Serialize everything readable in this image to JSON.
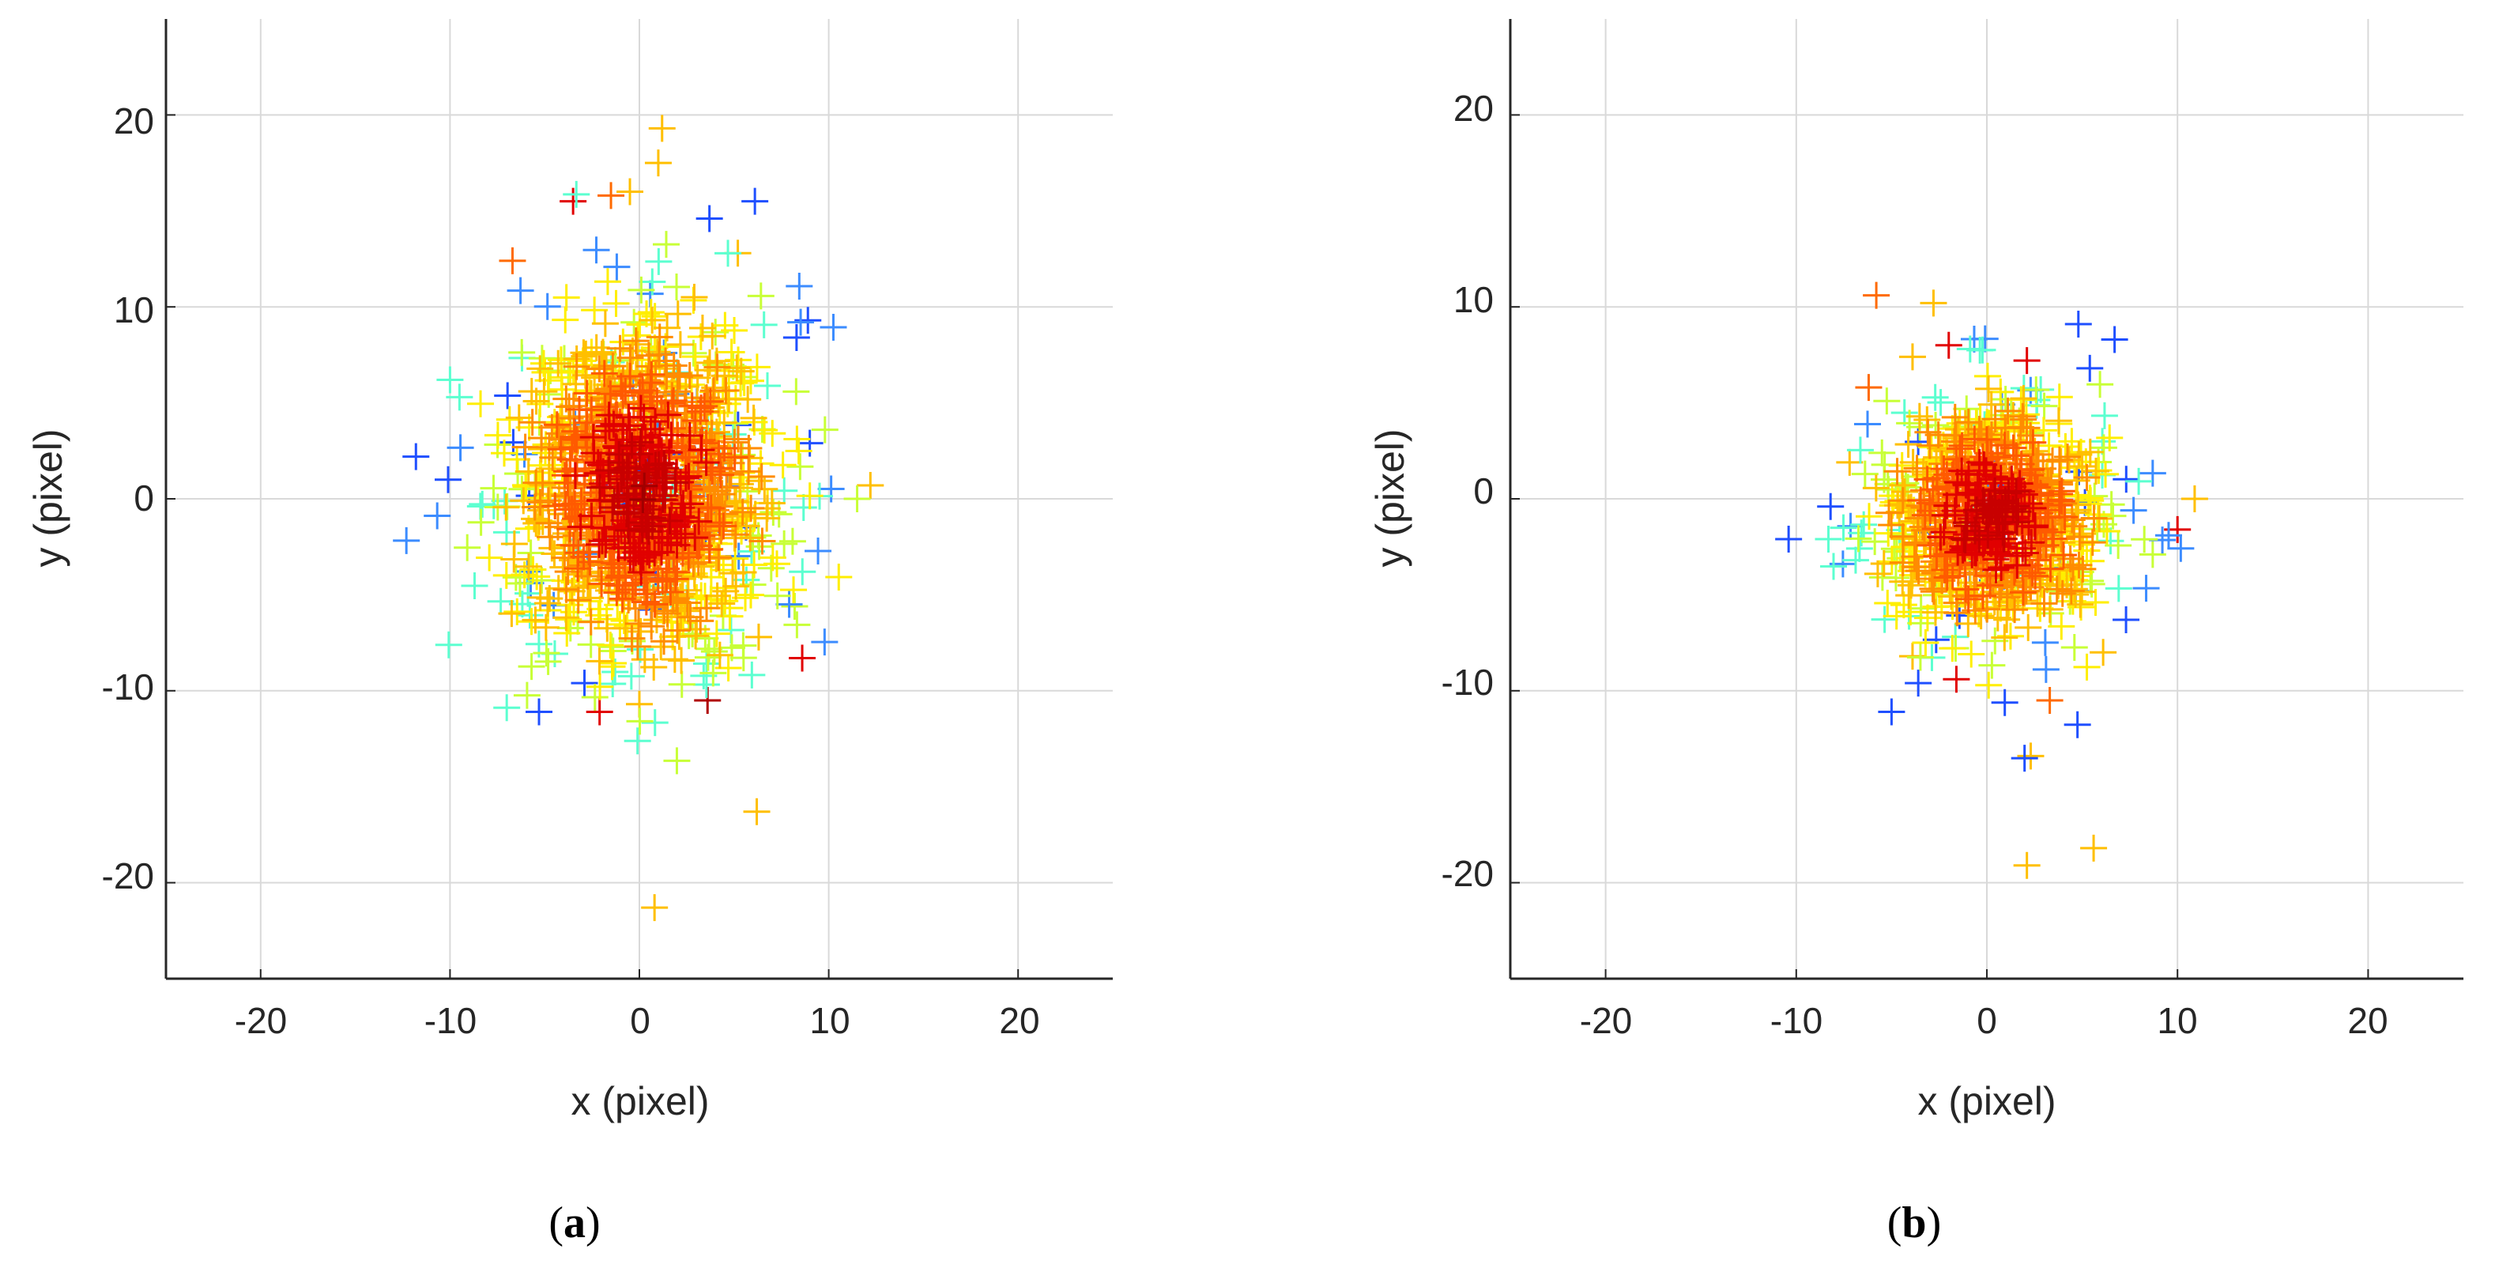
{
  "chart_data": [
    {
      "type": "scatter",
      "panel_label": "a",
      "xlabel": "x (pixel)",
      "ylabel": "y (pixel)",
      "xlim": [
        -25,
        25
      ],
      "ylim": [
        -25,
        25
      ],
      "xticks": [
        -20,
        -10,
        0,
        10,
        20
      ],
      "yticks": [
        -20,
        -10,
        0,
        10,
        20
      ],
      "xtick_labels": [
        "-20",
        "-10",
        "0",
        "10",
        "20"
      ],
      "ytick_labels": [
        "-20",
        "-10",
        "0",
        "10",
        "20"
      ],
      "grid": true,
      "marker": "+",
      "colormap": "jet",
      "cluster": {
        "center_x": 0,
        "center_y": 0.5,
        "spread_x": 3.4,
        "spread_y": 4.4,
        "count": 1400
      },
      "outliers": [
        {
          "x": -11.8,
          "y": 2.2,
          "color": "#1f4fff"
        },
        {
          "x": 12.2,
          "y": 0.7,
          "color": "#ffbf00"
        },
        {
          "x": 11.5,
          "y": 0.0,
          "color": "#c8ff37"
        },
        {
          "x": 9.8,
          "y": 3.6,
          "color": "#c8ff37"
        },
        {
          "x": 9.0,
          "y": 2.9,
          "color": "#1f4fff"
        },
        {
          "x": 8.9,
          "y": 9.3,
          "color": "#1f4fff"
        },
        {
          "x": 8.3,
          "y": 8.4,
          "color": "#1f4fff"
        },
        {
          "x": 8.6,
          "y": -8.3,
          "color": "#e10000"
        },
        {
          "x": 6.1,
          "y": 15.5,
          "color": "#1f4fff"
        },
        {
          "x": 5.2,
          "y": 12.8,
          "color": "#ffbf00"
        },
        {
          "x": 3.7,
          "y": 14.6,
          "color": "#1f4fff"
        },
        {
          "x": 1.2,
          "y": 19.3,
          "color": "#ffbf00"
        },
        {
          "x": 1.0,
          "y": 17.5,
          "color": "#ffbf00"
        },
        {
          "x": -0.5,
          "y": 16.0,
          "color": "#ffbf00"
        },
        {
          "x": -1.5,
          "y": 15.8,
          "color": "#ff6a00"
        },
        {
          "x": -3.5,
          "y": 15.5,
          "color": "#e10000"
        },
        {
          "x": -6.7,
          "y": 12.4,
          "color": "#ff6a00"
        },
        {
          "x": -10.0,
          "y": 6.2,
          "color": "#5cffd0"
        },
        {
          "x": -9.5,
          "y": 5.3,
          "color": "#5cffd0"
        },
        {
          "x": -10.1,
          "y": 1.0,
          "color": "#1f4fff"
        },
        {
          "x": 6.2,
          "y": -16.3,
          "color": "#ffbf00"
        },
        {
          "x": 0.8,
          "y": -21.3,
          "color": "#ffbf00"
        },
        {
          "x": -5.3,
          "y": -11.1,
          "color": "#1f4fff"
        },
        {
          "x": -2.1,
          "y": -11.1,
          "color": "#e10000"
        },
        {
          "x": 3.6,
          "y": -10.5,
          "color": "#b00000"
        },
        {
          "x": 0.0,
          "y": -10.7,
          "color": "#ffbf00"
        },
        {
          "x": -2.9,
          "y": -9.6,
          "color": "#1f4fff"
        },
        {
          "x": 6.3,
          "y": -7.2,
          "color": "#ffbf00"
        },
        {
          "x": 8.2,
          "y": -5.6,
          "color": "#c8ff37"
        }
      ]
    },
    {
      "type": "scatter",
      "panel_label": "b",
      "xlabel": "x (pixel)",
      "ylabel": "y (pixel)",
      "xlim": [
        -25,
        25
      ],
      "ylim": [
        -25,
        25
      ],
      "xticks": [
        -20,
        -10,
        0,
        10,
        20
      ],
      "yticks": [
        -20,
        -10,
        0,
        10,
        20
      ],
      "xtick_labels": [
        "-20",
        "-10",
        "0",
        "10",
        "20"
      ],
      "ytick_labels": [
        "-20",
        "-10",
        "0",
        "10",
        "20"
      ],
      "grid": true,
      "marker": "+",
      "colormap": "jet",
      "cluster": {
        "center_x": 0.3,
        "center_y": -1.0,
        "spread_x": 2.8,
        "spread_y": 3.0,
        "count": 1000
      },
      "outliers": [
        {
          "x": -10.4,
          "y": -2.1,
          "color": "#1f4fff"
        },
        {
          "x": 10.9,
          "y": 0.0,
          "color": "#ffbf00"
        },
        {
          "x": 10.0,
          "y": -1.6,
          "color": "#e10000"
        },
        {
          "x": 8.7,
          "y": -2.9,
          "color": "#c8ff37"
        },
        {
          "x": 7.3,
          "y": -6.3,
          "color": "#1f4fff"
        },
        {
          "x": 6.1,
          "y": -8.0,
          "color": "#ffbf00"
        },
        {
          "x": 4.8,
          "y": 9.1,
          "color": "#1f4fff"
        },
        {
          "x": 6.7,
          "y": 8.3,
          "color": "#1f4fff"
        },
        {
          "x": 5.4,
          "y": 6.8,
          "color": "#1f4fff"
        },
        {
          "x": 2.1,
          "y": 7.2,
          "color": "#e10000"
        },
        {
          "x": -5.8,
          "y": 10.6,
          "color": "#ff6a00"
        },
        {
          "x": -2.8,
          "y": 10.2,
          "color": "#ffbf00"
        },
        {
          "x": -3.9,
          "y": 7.4,
          "color": "#ffbf00"
        },
        {
          "x": -2.0,
          "y": 8.0,
          "color": "#e10000"
        },
        {
          "x": -6.2,
          "y": 5.8,
          "color": "#ff6a00"
        },
        {
          "x": -7.2,
          "y": 1.9,
          "color": "#ffbf00"
        },
        {
          "x": -8.2,
          "y": -0.4,
          "color": "#1f4fff"
        },
        {
          "x": -5.0,
          "y": -11.1,
          "color": "#1f4fff"
        },
        {
          "x": -3.6,
          "y": -9.6,
          "color": "#1f4fff"
        },
        {
          "x": -3.9,
          "y": -8.2,
          "color": "#ffbf00"
        },
        {
          "x": 2.3,
          "y": -13.4,
          "color": "#ffbf00"
        },
        {
          "x": 2.1,
          "y": -19.1,
          "color": "#ffbf00"
        },
        {
          "x": 5.6,
          "y": -18.2,
          "color": "#ffbf00"
        },
        {
          "x": 3.3,
          "y": -10.5,
          "color": "#ff6a00"
        },
        {
          "x": -1.6,
          "y": -9.4,
          "color": "#e10000"
        }
      ]
    }
  ]
}
